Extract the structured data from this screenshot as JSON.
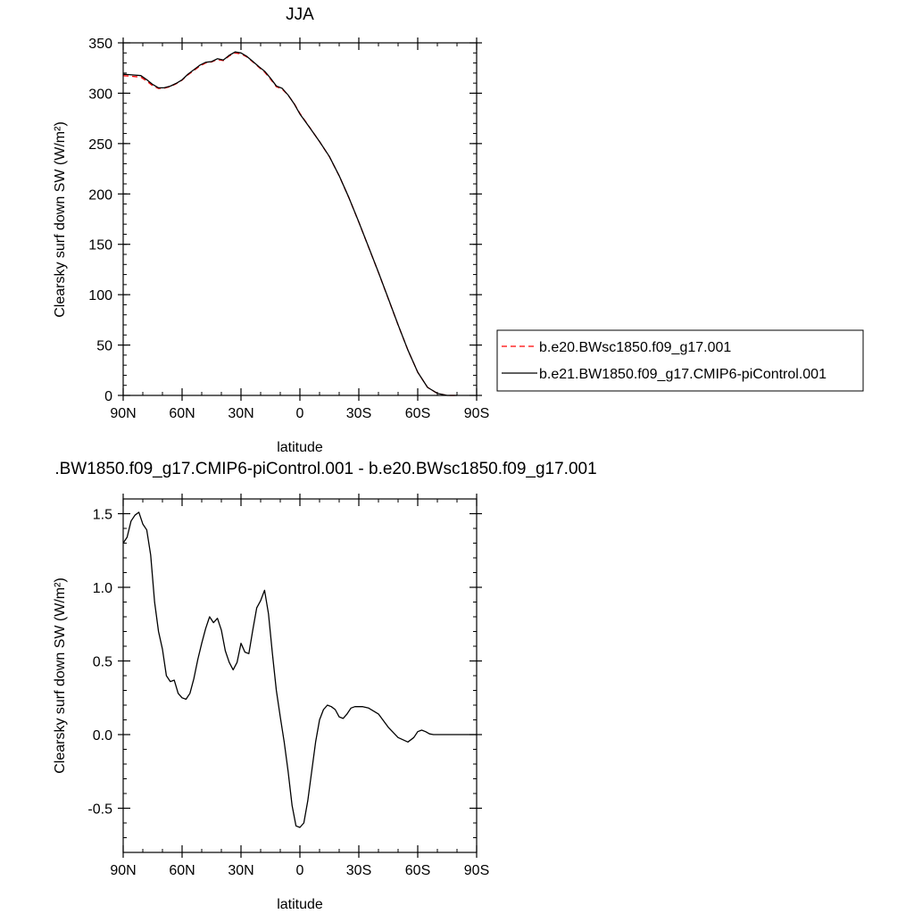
{
  "chart_data": [
    {
      "type": "line",
      "title": "JJA",
      "xlabel": "latitude",
      "ylabel": "Clearsky surf down SW (W/m²)",
      "xlim": [
        90,
        -90
      ],
      "ylim": [
        0,
        350
      ],
      "x_ticks": [
        {
          "value": 90,
          "label": "90N"
        },
        {
          "value": 60,
          "label": "60N"
        },
        {
          "value": 30,
          "label": "30N"
        },
        {
          "value": 0,
          "label": "0"
        },
        {
          "value": -30,
          "label": "30S"
        },
        {
          "value": -60,
          "label": "60S"
        },
        {
          "value": -90,
          "label": "90S"
        }
      ],
      "y_ticks": [
        {
          "value": 0,
          "label": "0"
        },
        {
          "value": 50,
          "label": "50"
        },
        {
          "value": 100,
          "label": "100"
        },
        {
          "value": 150,
          "label": "150"
        },
        {
          "value": 200,
          "label": "200"
        },
        {
          "value": 250,
          "label": "250"
        },
        {
          "value": 300,
          "label": "300"
        },
        {
          "value": 350,
          "label": "350"
        }
      ],
      "legend": "right",
      "series": [
        {
          "name": "b.e20.BWsc1850.f09_g17.001",
          "color": "#ff0000",
          "dash": "dashed",
          "x": [
            90,
            87,
            84,
            81,
            78,
            75,
            72,
            69,
            66,
            63,
            60,
            57,
            54,
            51,
            48,
            45,
            42,
            39,
            36,
            33,
            30,
            27,
            24,
            21,
            18,
            15,
            12,
            9,
            6,
            3,
            0,
            -5,
            -10,
            -15,
            -20,
            -25,
            -30,
            -35,
            -40,
            -45,
            -50,
            -55,
            -60,
            -65,
            -70,
            -75,
            -80
          ],
          "y": [
            317.4,
            317.0,
            316.5,
            316.0,
            312.0,
            307.5,
            304.7,
            305.0,
            306.6,
            309.4,
            313.0,
            318.3,
            322.5,
            327.0,
            330.0,
            331.0,
            333.4,
            332.5,
            337.0,
            340.0,
            339.0,
            336.0,
            331.0,
            326.0,
            321.0,
            314.0,
            306.5,
            304.0,
            298.0,
            290.0,
            280.0,
            266.0,
            252.0,
            237.0,
            218.0,
            196.0,
            172.0,
            147.0,
            122.0,
            96.0,
            70.0,
            45.0,
            23.0,
            8.0,
            2.0,
            0.0,
            0.0
          ]
        },
        {
          "name": "b.e21.BW1850.f09_g17.CMIP6-piControl.001",
          "color": "#000000",
          "dash": "solid",
          "x": [
            90,
            87,
            84,
            81,
            78,
            75,
            72,
            69,
            66,
            63,
            60,
            57,
            54,
            51,
            48,
            45,
            42,
            39,
            36,
            33,
            30,
            27,
            24,
            21,
            18,
            15,
            12,
            9,
            6,
            3,
            0,
            -5,
            -10,
            -15,
            -20,
            -25,
            -30,
            -35,
            -40,
            -45,
            -50,
            -55,
            -60,
            -65,
            -70,
            -75,
            -80
          ],
          "y": [
            318.8,
            318.5,
            318.0,
            317.5,
            313.4,
            308.7,
            305.3,
            305.4,
            307.0,
            309.8,
            313.3,
            318.9,
            323.3,
            327.8,
            330.7,
            331.4,
            334.2,
            333.0,
            337.6,
            341.0,
            340.0,
            336.5,
            331.6,
            326.5,
            321.9,
            315.0,
            307.2,
            304.8,
            298.2,
            289.7,
            279.4,
            265.8,
            252.0,
            237.2,
            218.1,
            196.1,
            172.1,
            147.2,
            122.2,
            96.2,
            70.1,
            45.0,
            23.0,
            8.0,
            2.0,
            0.0,
            0.0
          ]
        }
      ]
    },
    {
      "type": "line",
      "title": ".BW1850.f09_g17.CMIP6-piControl.001 - b.e20.BWsc1850.f09_g17.001",
      "xlabel": "latitude",
      "ylabel": "Clearsky surf down SW (W/m²)",
      "xlim": [
        90,
        -90
      ],
      "ylim": [
        -0.8,
        1.6
      ],
      "x_ticks": [
        {
          "value": 90,
          "label": "90N"
        },
        {
          "value": 60,
          "label": "60N"
        },
        {
          "value": 30,
          "label": "30N"
        },
        {
          "value": 0,
          "label": "0"
        },
        {
          "value": -30,
          "label": "30S"
        },
        {
          "value": -60,
          "label": "60S"
        },
        {
          "value": -90,
          "label": "90S"
        }
      ],
      "y_ticks": [
        {
          "value": -0.5,
          "label": "-0.5"
        },
        {
          "value": 0.0,
          "label": "0.0"
        },
        {
          "value": 0.5,
          "label": "0.5"
        },
        {
          "value": 1.0,
          "label": "1.0"
        },
        {
          "value": 1.5,
          "label": "1.5"
        }
      ],
      "series": [
        {
          "name": "",
          "color": "#000000",
          "dash": "solid",
          "x": [
            90,
            88,
            86,
            84,
            82,
            80,
            78,
            76,
            74,
            72,
            70,
            68,
            66,
            64,
            62,
            60,
            58,
            56,
            54,
            52,
            50,
            48,
            46,
            44,
            42,
            40,
            38,
            36,
            34,
            32,
            30,
            28,
            26,
            24,
            22,
            20,
            18,
            16,
            14,
            12,
            10,
            8,
            6,
            4,
            2,
            0,
            -2,
            -4,
            -6,
            -8,
            -10,
            -12,
            -14,
            -16,
            -18,
            -20,
            -22,
            -24,
            -26,
            -28,
            -30,
            -32,
            -35,
            -40,
            -45,
            -50,
            -55,
            -58,
            -60,
            -62,
            -64,
            -66,
            -68,
            -70,
            -75,
            -80,
            -85,
            -90
          ],
          "y": [
            1.3,
            1.34,
            1.45,
            1.49,
            1.51,
            1.43,
            1.39,
            1.22,
            0.9,
            0.7,
            0.58,
            0.4,
            0.36,
            0.37,
            0.28,
            0.25,
            0.24,
            0.28,
            0.38,
            0.51,
            0.62,
            0.72,
            0.8,
            0.76,
            0.79,
            0.71,
            0.57,
            0.49,
            0.44,
            0.49,
            0.62,
            0.56,
            0.55,
            0.71,
            0.86,
            0.91,
            0.98,
            0.82,
            0.55,
            0.3,
            0.12,
            -0.05,
            -0.25,
            -0.48,
            -0.62,
            -0.63,
            -0.6,
            -0.45,
            -0.25,
            -0.05,
            0.1,
            0.17,
            0.2,
            0.19,
            0.17,
            0.12,
            0.11,
            0.14,
            0.18,
            0.19,
            0.19,
            0.19,
            0.18,
            0.14,
            0.05,
            -0.02,
            -0.05,
            -0.02,
            0.02,
            0.03,
            0.02,
            0.005,
            0.0,
            0.0,
            0.0,
            0.0,
            0.0,
            0.0
          ]
        }
      ]
    }
  ]
}
